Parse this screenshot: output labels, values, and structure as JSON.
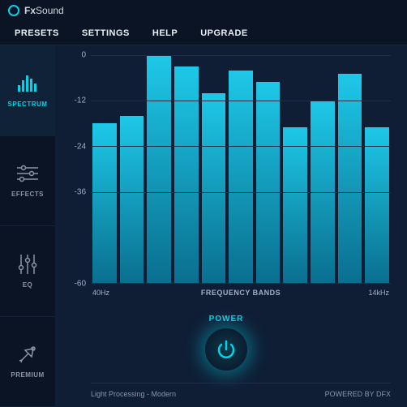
{
  "brand": {
    "prefix": "Fx",
    "suffix": "Sound"
  },
  "menubar": {
    "presets": "PRESETS",
    "settings": "SETTINGS",
    "help": "HELP",
    "upgrade": "UPGRADE"
  },
  "sidebar": {
    "items": [
      {
        "label": "SPECTRUM",
        "active": true
      },
      {
        "label": "EFFECTS",
        "active": false
      },
      {
        "label": "EQ",
        "active": false
      },
      {
        "label": "PREMIUM",
        "active": false
      }
    ]
  },
  "spectrum_chart": {
    "type": "bar",
    "y_ticks": [
      0,
      -12,
      -24,
      -36,
      -60
    ],
    "ylim": [
      -60,
      0
    ],
    "values": [
      -18,
      -16,
      0,
      -3,
      -10,
      -4,
      -7,
      -19,
      -12,
      -5,
      -19
    ],
    "bar_gradient_top": "#1ec8e8",
    "bar_gradient_bottom": "#0a6f8f",
    "grid_color": "#1e2e48",
    "background_color": "#0f1e35",
    "tick_color": "#9eb0c8",
    "tick_fontsize": 10,
    "x_left": "40Hz",
    "x_center": "FREQUENCY BANDS",
    "x_right": "14kHz"
  },
  "power": {
    "label": "POWER",
    "glow_color": "#00d4e8"
  },
  "footer": {
    "preset": "Light Processing - Modern",
    "credit": "POWERED BY DFX"
  },
  "colors": {
    "accent": "#00d4e8",
    "bg_dark": "#0a1424",
    "bg_main": "#0f1e35",
    "text_muted": "#8a96a8",
    "text_light": "#e8eef4"
  }
}
